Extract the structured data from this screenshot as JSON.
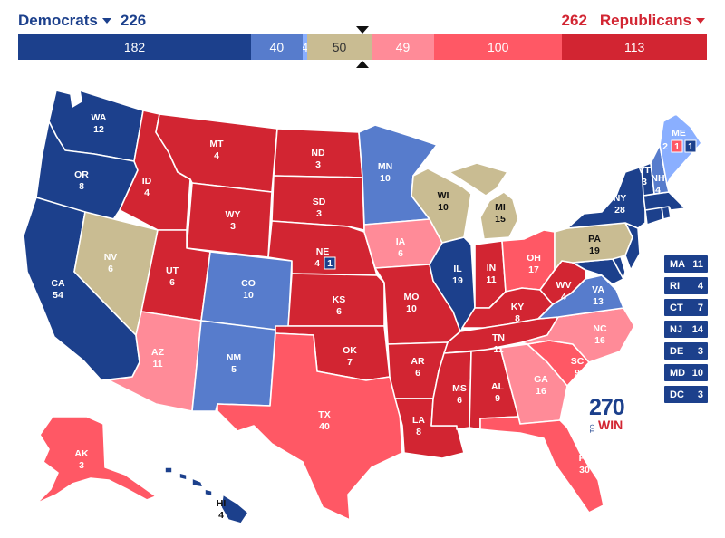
{
  "header": {
    "dem_label": "Democrats",
    "dem_total": "226",
    "rep_label": "Republicans",
    "rep_total": "262"
  },
  "bar": [
    {
      "label": "182",
      "value": 182,
      "color": "#1c408c"
    },
    {
      "label": "40",
      "value": 40,
      "color": "#577ccc"
    },
    {
      "label": "4",
      "value": 4,
      "color": "#8aafff"
    },
    {
      "label": "50",
      "value": 50,
      "color": "#c9bc92"
    },
    {
      "label": "49",
      "value": 49,
      "color": "#ff8b98"
    },
    {
      "label": "100",
      "value": 100,
      "color": "#ff5865"
    },
    {
      "label": "113",
      "value": 113,
      "color": "#d22532"
    }
  ],
  "colors": {
    "safe_dem": "#1c408c",
    "likely_dem": "#577ccc",
    "lean_dem": "#8aafff",
    "tossup": "#c9bc92",
    "lean_rep": "#ff8b98",
    "likely_rep": "#ff5865",
    "safe_rep": "#d22532"
  },
  "states": {
    "WA": {
      "name": "WA",
      "ev": "12"
    },
    "OR": {
      "name": "OR",
      "ev": "8"
    },
    "CA": {
      "name": "CA",
      "ev": "54"
    },
    "NV": {
      "name": "NV",
      "ev": "6"
    },
    "ID": {
      "name": "ID",
      "ev": "4"
    },
    "MT": {
      "name": "MT",
      "ev": "4"
    },
    "WY": {
      "name": "WY",
      "ev": "3"
    },
    "UT": {
      "name": "UT",
      "ev": "6"
    },
    "AZ": {
      "name": "AZ",
      "ev": "11"
    },
    "CO": {
      "name": "CO",
      "ev": "10"
    },
    "NM": {
      "name": "NM",
      "ev": "5"
    },
    "ND": {
      "name": "ND",
      "ev": "3"
    },
    "SD": {
      "name": "SD",
      "ev": "3"
    },
    "NE": {
      "name": "NE",
      "ev": "4",
      "district": "1"
    },
    "KS": {
      "name": "KS",
      "ev": "6"
    },
    "OK": {
      "name": "OK",
      "ev": "7"
    },
    "TX": {
      "name": "TX",
      "ev": "40"
    },
    "MN": {
      "name": "MN",
      "ev": "10"
    },
    "IA": {
      "name": "IA",
      "ev": "6"
    },
    "MO": {
      "name": "MO",
      "ev": "10"
    },
    "AR": {
      "name": "AR",
      "ev": "6"
    },
    "LA": {
      "name": "LA",
      "ev": "8"
    },
    "WI": {
      "name": "WI",
      "ev": "10"
    },
    "IL": {
      "name": "IL",
      "ev": "19"
    },
    "MI": {
      "name": "MI",
      "ev": "15"
    },
    "IN": {
      "name": "IN",
      "ev": "11"
    },
    "OH": {
      "name": "OH",
      "ev": "17"
    },
    "KY": {
      "name": "KY",
      "ev": "8"
    },
    "TN": {
      "name": "TN",
      "ev": "11"
    },
    "MS": {
      "name": "MS",
      "ev": "6"
    },
    "AL": {
      "name": "AL",
      "ev": "9"
    },
    "GA": {
      "name": "GA",
      "ev": "16"
    },
    "FL": {
      "name": "FL",
      "ev": "30"
    },
    "SC": {
      "name": "SC",
      "ev": "9"
    },
    "NC": {
      "name": "NC",
      "ev": "16"
    },
    "VA": {
      "name": "VA",
      "ev": "13"
    },
    "WV": {
      "name": "WV",
      "ev": "4"
    },
    "PA": {
      "name": "PA",
      "ev": "19"
    },
    "NY": {
      "name": "NY",
      "ev": "28"
    },
    "VT": {
      "name": "VT",
      "ev": "3"
    },
    "NH": {
      "name": "NH",
      "ev": "4"
    },
    "ME": {
      "name": "ME",
      "d1": "2",
      "d2": "1",
      "d3": "1"
    },
    "AK": {
      "name": "AK",
      "ev": "3"
    },
    "HI": {
      "name": "HI",
      "ev": "4"
    }
  },
  "small_states": [
    {
      "name": "MA",
      "ev": "11"
    },
    {
      "name": "RI",
      "ev": "4"
    },
    {
      "name": "CT",
      "ev": "7"
    },
    {
      "name": "NJ",
      "ev": "14"
    },
    {
      "name": "DE",
      "ev": "3"
    },
    {
      "name": "MD",
      "ev": "10"
    },
    {
      "name": "DC",
      "ev": "3"
    }
  ],
  "logo": {
    "number": "270",
    "to": "TO",
    "win": "WIN"
  }
}
